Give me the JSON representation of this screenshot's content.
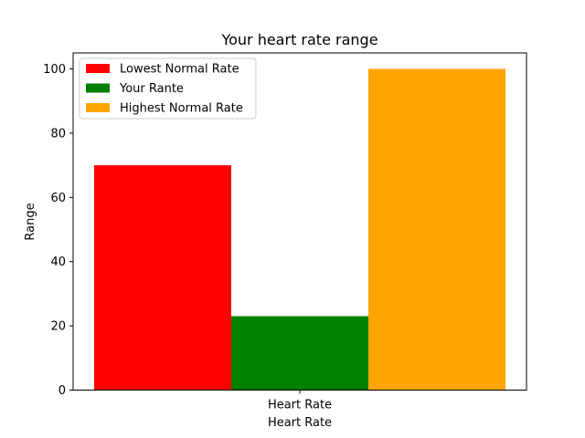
{
  "chart_data": {
    "type": "bar",
    "title": "Your heart rate range",
    "xlabel": "Heart Rate",
    "ylabel": "Range",
    "categories": [
      "Heart Rate"
    ],
    "series": [
      {
        "name": "Lowest Normal Rate",
        "values": [
          70
        ],
        "color": "#ff0000"
      },
      {
        "name": "Your Rante",
        "values": [
          23
        ],
        "color": "#008000"
      },
      {
        "name": "Highest Normal Rate",
        "values": [
          100
        ],
        "color": "#ffa500"
      }
    ],
    "ylim": [
      0,
      100
    ],
    "yticks": [
      "0",
      "20",
      "40",
      "60",
      "80",
      "100"
    ],
    "grid": false,
    "legend_position": "top-left"
  }
}
